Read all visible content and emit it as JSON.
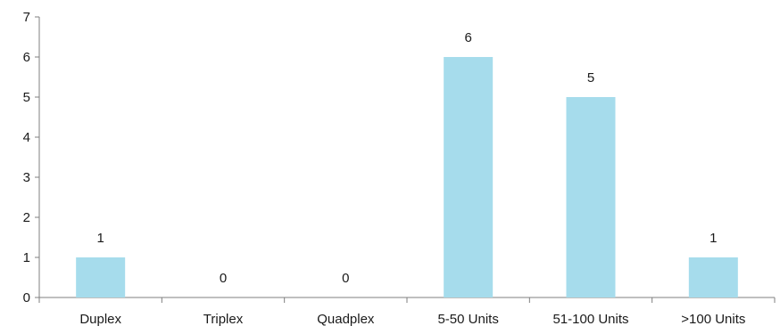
{
  "chart_data": {
    "type": "bar",
    "categories": [
      "Duplex",
      "Triplex",
      "Quadplex",
      "5-50 Units",
      "51-100 Units",
      ">100 Units"
    ],
    "values": [
      1,
      0,
      0,
      6,
      5,
      1
    ],
    "data_labels": [
      "1",
      "0",
      "0",
      "6",
      "5",
      "1"
    ],
    "y_ticks": [
      "0",
      "1",
      "2",
      "3",
      "4",
      "5",
      "6",
      "7"
    ],
    "ylim": [
      0,
      7
    ],
    "grid": false,
    "legend": "none",
    "bar_color": "#a6dcec",
    "title": "",
    "xlabel": "",
    "ylabel": ""
  }
}
